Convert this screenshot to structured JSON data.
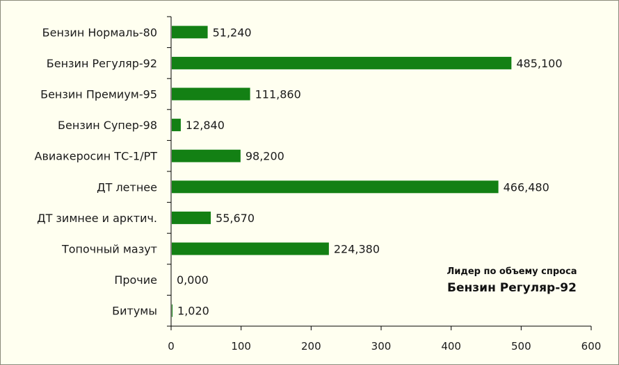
{
  "chart_data": {
    "type": "bar",
    "orientation": "horizontal",
    "categories": [
      "Бензин Нормаль-80",
      "Бензин Регуляр-92",
      "Бензин Премиум-95",
      "Бензин Супер-98",
      "Авиакеросин ТС-1/РТ",
      "ДТ летнее",
      "ДТ зимнее и арктич.",
      "Топочный мазут",
      "Прочие",
      "Битумы"
    ],
    "values": [
      51.24,
      485.1,
      111.86,
      12.84,
      98.2,
      466.48,
      55.67,
      224.38,
      0.0,
      1.02
    ],
    "value_labels": [
      "51,240",
      "485,100",
      "111,860",
      "12,840",
      "98,200",
      "466,480",
      "55,670",
      "224,380",
      "0,000",
      "1,020"
    ],
    "xlim": [
      0,
      600
    ],
    "x_ticks": [
      "0",
      "100",
      "200",
      "300",
      "400",
      "500",
      "600"
    ],
    "bar_color": "#138014",
    "grid": false
  },
  "annotation": {
    "title": "Лидер по объему спроса",
    "value": "Бензин Регуляр-92"
  }
}
